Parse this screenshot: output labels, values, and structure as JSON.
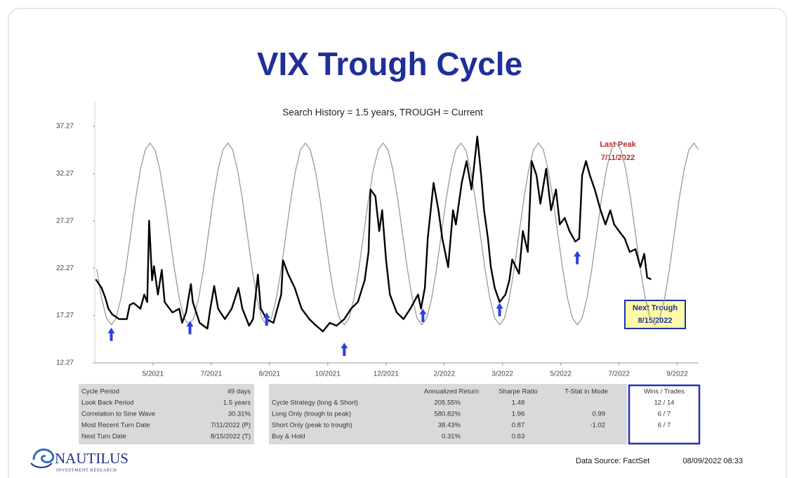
{
  "chart_data": {
    "type": "line",
    "title": "VIX Trough Cycle",
    "subtitle": "Search History = 1.5 years, TROUGH = Current",
    "xlim": [
      0,
      622
    ],
    "xticks": [
      {
        "value": 60,
        "label": "5/2021"
      },
      {
        "value": 120,
        "label": "7/2021"
      },
      {
        "value": 180,
        "label": "8/2021"
      },
      {
        "value": 240,
        "label": "10/2021"
      },
      {
        "value": 300,
        "label": "12/2021"
      },
      {
        "value": 360,
        "label": "2/2022"
      },
      {
        "value": 420,
        "label": "3/2022"
      },
      {
        "value": 480,
        "label": "5/2022"
      },
      {
        "value": 540,
        "label": "7/2022"
      },
      {
        "value": 600,
        "label": "9/2022"
      }
    ],
    "ylim": [
      12.27,
      39.87
    ],
    "yticks": [
      12.27,
      17.27,
      22.27,
      27.27,
      32.27,
      37.27
    ],
    "grid": false,
    "series": [
      {
        "color": "#000000",
        "x": [
          1,
          7,
          11,
          14,
          18,
          25,
          33,
          36,
          40,
          47,
          51,
          54,
          56,
          59,
          61,
          65,
          69,
          72,
          80,
          87,
          90,
          94,
          99,
          101,
          108,
          116,
          119,
          123,
          127,
          134,
          141,
          148,
          152,
          159,
          163,
          168,
          171,
          177,
          184,
          192,
          194,
          199,
          206,
          213,
          221,
          228,
          235,
          242,
          249,
          257,
          264,
          271,
          278,
          282,
          284,
          289,
          293,
          296,
          300,
          304,
          311,
          318,
          325,
          333,
          336,
          340,
          343,
          349,
          354,
          358,
          364,
          369,
          372,
          378,
          383,
          388,
          394,
          398,
          401,
          405,
          408,
          412,
          417,
          423,
          427,
          430,
          437,
          441,
          446,
          450,
          455,
          459,
          465,
          470,
          475,
          479,
          484,
          489,
          495,
          499,
          502,
          506,
          510,
          515,
          521,
          526,
          531,
          535,
          540,
          546,
          551,
          557,
          562,
          566,
          569,
          573
        ],
        "values": [
          21.1,
          20.2,
          19.1,
          18.0,
          17.4,
          16.9,
          16.9,
          18.4,
          18.6,
          18.0,
          19.5,
          18.7,
          27.3,
          21.0,
          22.5,
          19.5,
          22.1,
          18.7,
          17.6,
          18.0,
          16.5,
          17.6,
          20.6,
          18.7,
          16.5,
          15.9,
          18.0,
          20.4,
          18.0,
          16.9,
          18.0,
          20.2,
          18.0,
          16.2,
          16.9,
          21.6,
          18.0,
          16.9,
          16.5,
          19.5,
          23.1,
          21.7,
          20.2,
          18.0,
          16.9,
          16.2,
          15.6,
          16.5,
          16.2,
          16.9,
          18.0,
          18.7,
          21.0,
          24.0,
          30.6,
          29.9,
          26.2,
          28.4,
          23.2,
          19.5,
          17.6,
          16.9,
          18.0,
          19.5,
          18.0,
          20.2,
          25.4,
          31.3,
          28.4,
          25.4,
          22.4,
          28.4,
          26.9,
          31.3,
          33.6,
          30.6,
          36.2,
          32.1,
          28.4,
          25.4,
          22.4,
          20.2,
          18.7,
          19.5,
          21.0,
          23.2,
          21.7,
          26.2,
          24.0,
          33.6,
          32.1,
          29.1,
          32.8,
          28.4,
          30.6,
          26.9,
          27.6,
          26.2,
          25.1,
          25.4,
          32.1,
          33.6,
          32.1,
          30.6,
          28.4,
          26.9,
          28.4,
          26.9,
          26.2,
          25.4,
          24.0,
          24.3,
          22.4,
          23.8,
          21.3,
          21.1
        ]
      },
      {
        "color": "#9a9a9a",
        "x": [
          2,
          7,
          12,
          17,
          22,
          27,
          32,
          37,
          42,
          47,
          52,
          57,
          62,
          67,
          72,
          77,
          82,
          87,
          92,
          97,
          102,
          107,
          112,
          117,
          122,
          127,
          132,
          137,
          142,
          147,
          152,
          157,
          162,
          167,
          172,
          177,
          182,
          187,
          192,
          197,
          202,
          207,
          212,
          217,
          222,
          227,
          232,
          237,
          242,
          247,
          252,
          257,
          262,
          267,
          272,
          277,
          282,
          287,
          292,
          297,
          302,
          307,
          312,
          317,
          322,
          327,
          332,
          337,
          342,
          347,
          352,
          357,
          362,
          367,
          372,
          377,
          382,
          387,
          392,
          397,
          402,
          407,
          412,
          417,
          422,
          427,
          432,
          437,
          442,
          447,
          452,
          457,
          462,
          467,
          472,
          477,
          482,
          487,
          492,
          497,
          502,
          507,
          512,
          517,
          522,
          527,
          532,
          537,
          542,
          547,
          552,
          557,
          562,
          567,
          572,
          577,
          582,
          587,
          592,
          597,
          602,
          607,
          612,
          617,
          622
        ],
        "values": [
          22.2,
          19.1,
          17.0,
          16.3,
          17.0,
          19.1,
          22.2,
          25.9,
          29.6,
          32.7,
          34.8,
          35.5,
          34.8,
          32.7,
          29.6,
          25.9,
          22.2,
          19.1,
          17.0,
          16.3,
          17.0,
          19.1,
          22.2,
          25.9,
          29.6,
          32.7,
          34.8,
          35.5,
          34.8,
          32.7,
          29.6,
          25.9,
          22.2,
          19.1,
          17.0,
          16.3,
          17.0,
          19.1,
          22.2,
          25.9,
          29.6,
          32.7,
          34.8,
          35.5,
          34.8,
          32.7,
          29.6,
          25.9,
          22.2,
          19.1,
          17.0,
          16.3,
          17.0,
          19.1,
          22.2,
          25.9,
          29.6,
          32.7,
          34.8,
          35.5,
          34.8,
          32.7,
          29.6,
          25.9,
          22.2,
          19.1,
          17.0,
          16.3,
          17.0,
          19.1,
          22.2,
          25.9,
          29.6,
          32.7,
          34.8,
          35.5,
          34.8,
          32.7,
          29.6,
          25.9,
          22.2,
          19.1,
          17.0,
          16.3,
          17.0,
          19.1,
          22.2,
          25.9,
          29.6,
          32.7,
          34.8,
          35.5,
          34.8,
          32.7,
          29.6,
          25.9,
          22.2,
          19.1,
          17.0,
          16.3,
          17.0,
          19.1,
          22.2,
          25.9,
          29.6,
          32.7,
          34.8,
          35.5,
          34.8,
          32.7,
          29.6,
          25.9,
          22.2,
          19.1,
          17.0,
          16.3,
          17.0,
          19.1,
          22.2,
          25.9,
          29.6,
          32.7,
          34.8,
          35.5,
          34.8
        ]
      }
    ],
    "trough_markers": {
      "color": "#2b3fe0",
      "x": [
        17,
        98,
        177,
        257,
        338,
        417,
        497
      ],
      "y": [
        16.0,
        16.7,
        17.6,
        14.4,
        18.0,
        18.6,
        24.1
      ]
    },
    "annotations": {
      "last_peak": [
        "Last Peak",
        "7/11/2022"
      ],
      "next_trough": [
        "Next Trough",
        "8/15/2022"
      ]
    }
  },
  "summary_table": [
    [
      "Cycle Period",
      "49 days"
    ],
    [
      "Look Back Period",
      "1.5 years"
    ],
    [
      "Correlation to Sine Wave",
      "30.31%"
    ],
    [
      "Most Recent Turn Date",
      "7/11/2022 (P)"
    ],
    [
      "Next Turn Date",
      "8/15/2022 (T)"
    ]
  ],
  "strategy_table": {
    "header": [
      "Annualized Return",
      "Sharpe Ratio",
      "T-Stat in Mode",
      "Wins / Trades"
    ],
    "rows": [
      [
        "Cycle Strategy (long & Short)",
        "205.55%",
        "1.48",
        null,
        "12 / 14"
      ],
      [
        "Long Only (trough to peak)",
        "580.82%",
        "1.96",
        "0.99",
        "6 / 7"
      ],
      [
        "Short Only (peak to trough)",
        "38.43%",
        "0.87",
        "-1.02",
        "6 / 7"
      ],
      [
        "Buy & Hold",
        "0.31%",
        "0.63",
        null,
        null
      ]
    ]
  },
  "footer": {
    "logo": "NAUTILUS",
    "tagline": "INVESTMENT RESEARCH",
    "source": "Data Source: FactSet",
    "timestamp": "08/09/2022 08:33"
  }
}
